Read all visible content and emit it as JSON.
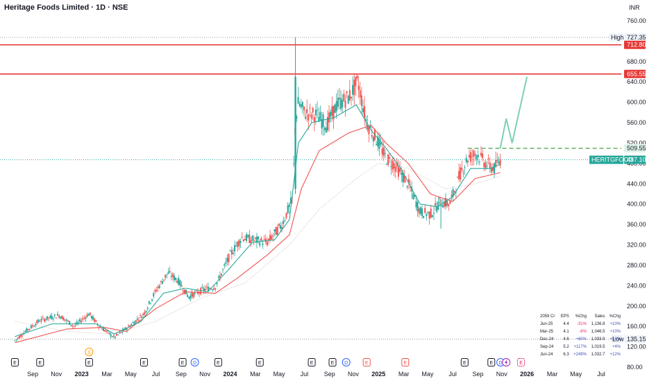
{
  "header": {
    "title": "Heritage Foods Limited · 1D · NSE",
    "currency": "INR"
  },
  "chart_data": {
    "type": "candlestick",
    "price_ticks": [
      "760.00",
      "720.00",
      "680.00",
      "640.00",
      "600.00",
      "560.00",
      "520.00",
      "480.00",
      "440.00",
      "400.00",
      "360.00",
      "320.00",
      "280.00",
      "240.00",
      "200.00",
      "160.00",
      "120.00",
      "80.00"
    ],
    "time_ticks": [
      {
        "label": "Sep",
        "bold": false
      },
      {
        "label": "Nov",
        "bold": false
      },
      {
        "label": "2023",
        "bold": true
      },
      {
        "label": "Mar",
        "bold": false
      },
      {
        "label": "May",
        "bold": false
      },
      {
        "label": "Jul",
        "bold": false
      },
      {
        "label": "Sep",
        "bold": false
      },
      {
        "label": "Nov",
        "bold": false
      },
      {
        "label": "2024",
        "bold": true
      },
      {
        "label": "Mar",
        "bold": false
      },
      {
        "label": "May",
        "bold": false
      },
      {
        "label": "Jul",
        "bold": false
      },
      {
        "label": "Sep",
        "bold": false
      },
      {
        "label": "Nov",
        "bold": false
      },
      {
        "label": "2025",
        "bold": true
      },
      {
        "label": "Mar",
        "bold": false
      },
      {
        "label": "May",
        "bold": false
      },
      {
        "label": "Jul",
        "bold": false
      },
      {
        "label": "Sep",
        "bold": false
      },
      {
        "label": "Nov",
        "bold": false
      },
      {
        "label": "2026",
        "bold": true
      },
      {
        "label": "Mar",
        "bold": false
      },
      {
        "label": "May",
        "bold": false
      },
      {
        "label": "Jul",
        "bold": false
      }
    ],
    "price_range": [
      80,
      770
    ],
    "levels": {
      "high": {
        "label": "High",
        "value": "727.35",
        "price": 727.35
      },
      "resistance_1": {
        "value": "712.80",
        "price": 712.8,
        "color": "#e53935"
      },
      "resistance_2": {
        "value": "655.55",
        "price": 655.55,
        "color": "#e53935"
      },
      "breakout": {
        "value": "509.55",
        "price": 509.55,
        "color": "#43a047"
      },
      "last": {
        "symbol": "HERITGFOOD",
        "value": "487.10",
        "price": 487.1,
        "color": "#26a69a"
      },
      "low": {
        "label": "Low",
        "value": "135.15",
        "price": 135.15
      }
    },
    "series_path": [
      [
        2022.55,
        132
      ],
      [
        2022.62,
        150
      ],
      [
        2022.72,
        172
      ],
      [
        2022.85,
        182
      ],
      [
        2022.95,
        160
      ],
      [
        2023.05,
        185
      ],
      [
        2023.12,
        160
      ],
      [
        2023.22,
        138
      ],
      [
        2023.32,
        160
      ],
      [
        2023.42,
        185
      ],
      [
        2023.5,
        230
      ],
      [
        2023.58,
        265
      ],
      [
        2023.65,
        250
      ],
      [
        2023.72,
        218
      ],
      [
        2023.82,
        232
      ],
      [
        2023.9,
        238
      ],
      [
        2024.0,
        300
      ],
      [
        2024.08,
        335
      ],
      [
        2024.15,
        330
      ],
      [
        2024.25,
        325
      ],
      [
        2024.35,
        360
      ],
      [
        2024.42,
        410
      ],
      [
        2024.44,
        560
      ],
      [
        2024.46,
        600
      ],
      [
        2024.5,
        580
      ],
      [
        2024.58,
        575
      ],
      [
        2024.65,
        555
      ],
      [
        2024.72,
        595
      ],
      [
        2024.8,
        610
      ],
      [
        2024.86,
        640
      ],
      [
        2024.92,
        560
      ],
      [
        2025.0,
        520
      ],
      [
        2025.05,
        490
      ],
      [
        2025.1,
        480
      ],
      [
        2025.2,
        440
      ],
      [
        2025.28,
        385
      ],
      [
        2025.35,
        380
      ],
      [
        2025.42,
        405
      ],
      [
        2025.48,
        400
      ],
      [
        2025.55,
        460
      ],
      [
        2025.6,
        490
      ],
      [
        2025.66,
        500
      ],
      [
        2025.72,
        480
      ],
      [
        2025.78,
        470
      ],
      [
        2025.82,
        487.1
      ]
    ],
    "ema_fast": [
      [
        2022.55,
        140
      ],
      [
        2022.8,
        165
      ],
      [
        2023.1,
        165
      ],
      [
        2023.22,
        145
      ],
      [
        2023.4,
        170
      ],
      [
        2023.55,
        225
      ],
      [
        2023.7,
        235
      ],
      [
        2023.85,
        228
      ],
      [
        2024.0,
        275
      ],
      [
        2024.15,
        325
      ],
      [
        2024.3,
        330
      ],
      [
        2024.4,
        370
      ],
      [
        2024.46,
        520
      ],
      [
        2024.55,
        560
      ],
      [
        2024.7,
        570
      ],
      [
        2024.85,
        595
      ],
      [
        2024.95,
        545
      ],
      [
        2025.05,
        510
      ],
      [
        2025.15,
        470
      ],
      [
        2025.28,
        400
      ],
      [
        2025.4,
        395
      ],
      [
        2025.5,
        415
      ],
      [
        2025.62,
        470
      ],
      [
        2025.75,
        470
      ],
      [
        2025.82,
        478
      ]
    ],
    "ema_slow": [
      [
        2022.55,
        128
      ],
      [
        2022.9,
        155
      ],
      [
        2023.15,
        158
      ],
      [
        2023.3,
        150
      ],
      [
        2023.5,
        195
      ],
      [
        2023.7,
        228
      ],
      [
        2023.9,
        225
      ],
      [
        2024.05,
        255
      ],
      [
        2024.25,
        300
      ],
      [
        2024.4,
        340
      ],
      [
        2024.48,
        430
      ],
      [
        2024.6,
        505
      ],
      [
        2024.8,
        540
      ],
      [
        2024.95,
        555
      ],
      [
        2025.05,
        520
      ],
      [
        2025.2,
        480
      ],
      [
        2025.35,
        420
      ],
      [
        2025.5,
        405
      ],
      [
        2025.65,
        450
      ],
      [
        2025.82,
        462
      ]
    ],
    "sma_long": [
      [
        2022.55,
        170
      ],
      [
        2022.9,
        150
      ],
      [
        2023.2,
        145
      ],
      [
        2023.5,
        170
      ],
      [
        2023.8,
        215
      ],
      [
        2024.1,
        245
      ],
      [
        2024.4,
        320
      ],
      [
        2024.6,
        390
      ],
      [
        2024.85,
        450
      ],
      [
        2025.0,
        480
      ],
      [
        2025.2,
        470
      ],
      [
        2025.45,
        430
      ],
      [
        2025.65,
        440
      ],
      [
        2025.82,
        455
      ]
    ],
    "projection": [
      [
        2025.82,
        509.55
      ],
      [
        2025.86,
        568
      ],
      [
        2025.9,
        520
      ],
      [
        2026.0,
        650
      ]
    ],
    "earnings_markers": [
      {
        "t": 2022.55,
        "type": "E"
      },
      {
        "t": 2022.72,
        "type": "E"
      },
      {
        "t": 2023.05,
        "type": "E"
      },
      {
        "t": 2023.05,
        "type": "S"
      },
      {
        "t": 2023.42,
        "type": "E"
      },
      {
        "t": 2023.68,
        "type": "E"
      },
      {
        "t": 2023.72,
        "type": "D"
      },
      {
        "t": 2023.92,
        "type": "E"
      },
      {
        "t": 2024.2,
        "type": "E"
      },
      {
        "t": 2024.55,
        "type": "E"
      },
      {
        "t": 2024.69,
        "type": "E"
      },
      {
        "t": 2024.74,
        "type": "D"
      },
      {
        "t": 2024.92,
        "type": "E"
      },
      {
        "t": 2025.18,
        "type": "E"
      },
      {
        "t": 2025.58,
        "type": "E"
      },
      {
        "t": 2025.76,
        "type": "E"
      },
      {
        "t": 2025.78,
        "type": "D"
      },
      {
        "t": 2025.86,
        "type": "bolt"
      },
      {
        "t": 2025.96,
        "type": "E"
      }
    ]
  },
  "eps_table": {
    "headers": [
      "2059 Cr",
      "EPS",
      "%Chg",
      "Sales",
      "%Chg"
    ],
    "rows": [
      {
        "period": "Jun-25",
        "eps": "4.4",
        "eps_chg": "-31%",
        "eps_dir": "neg",
        "sales": "1,136.8",
        "sales_chg": "+10%",
        "sales_dir": "pos"
      },
      {
        "period": "Mar-25",
        "eps": "4.1",
        "eps_chg": "-6%",
        "eps_dir": "neg",
        "sales": "1,046.5",
        "sales_chg": "+10%",
        "sales_dir": "pos"
      },
      {
        "period": "Dec-24",
        "eps": "4.6",
        "eps_chg": "+60%",
        "eps_dir": "pos",
        "sales": "1,033.9",
        "sales_chg": "+16%",
        "sales_dir": "pos"
      },
      {
        "period": "Sep-24",
        "eps": "5.2",
        "eps_chg": "+117%",
        "eps_dir": "pos",
        "sales": "1,019.5",
        "sales_chg": "+4%",
        "sales_dir": "pos"
      },
      {
        "period": "Jun-24",
        "eps": "6.3",
        "eps_chg": "+249%",
        "eps_dir": "pos",
        "sales": "1,032.7",
        "sales_chg": "+12%",
        "sales_dir": "pos"
      }
    ]
  }
}
